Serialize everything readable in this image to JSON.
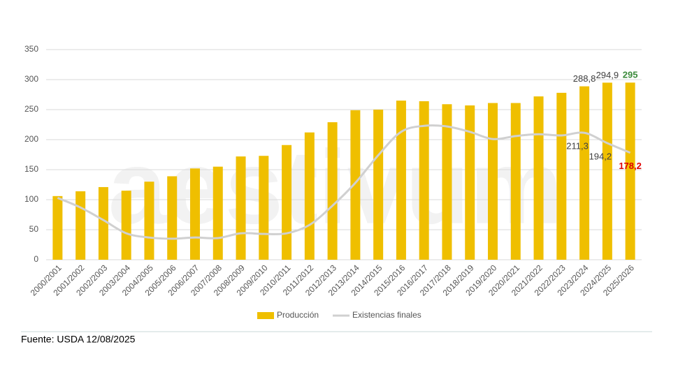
{
  "chart_data": {
    "type": "bar-line",
    "categories": [
      "2000/2001",
      "2001/2002",
      "2002/2003",
      "2003/2004",
      "2004/2005",
      "2005/2006",
      "2006/2007",
      "2007/2008",
      "2008/2009",
      "2009/2010",
      "2010/2011",
      "2011/2012",
      "2012/2013",
      "2013/2014",
      "2014/2015",
      "2015/2016",
      "2016/2017",
      "2017/2018",
      "2018/2019",
      "2019/2020",
      "2020/2021",
      "2021/2022",
      "2022/2023",
      "2023/2024",
      "2024/2025",
      "2025/2026"
    ],
    "series": [
      {
        "name": "Producción",
        "type": "bar",
        "color": "#efbf00",
        "values": [
          106,
          114,
          121,
          115,
          130,
          139,
          152,
          155,
          172,
          173,
          191,
          212,
          229,
          249,
          250,
          265,
          264,
          259,
          257,
          261,
          261,
          272,
          278,
          288.8,
          294.9,
          295
        ],
        "value_labels": [
          null,
          null,
          null,
          null,
          null,
          null,
          null,
          null,
          null,
          null,
          null,
          null,
          null,
          null,
          null,
          null,
          null,
          null,
          null,
          null,
          null,
          null,
          null,
          "288,8",
          "294,9",
          "295"
        ],
        "value_label_colors": [
          null,
          null,
          null,
          null,
          null,
          null,
          null,
          null,
          null,
          null,
          null,
          null,
          null,
          null,
          null,
          null,
          null,
          null,
          null,
          null,
          null,
          null,
          null,
          "#404040",
          "#404040",
          "#3a8a3a"
        ]
      },
      {
        "name": "Existencias finales",
        "type": "line",
        "color": "#d0d0d0",
        "values": [
          103,
          87,
          66,
          44,
          37,
          35,
          37,
          36,
          44,
          43,
          44,
          58,
          90,
          128,
          174,
          213,
          223,
          222,
          213,
          201,
          206,
          209,
          207,
          211.3,
          194.2,
          178.2
        ],
        "value_labels": [
          null,
          null,
          null,
          null,
          null,
          null,
          null,
          null,
          null,
          null,
          null,
          null,
          null,
          null,
          null,
          null,
          null,
          null,
          null,
          null,
          null,
          null,
          null,
          "211,3",
          "194,2",
          "178,2"
        ],
        "value_label_colors": [
          null,
          null,
          null,
          null,
          null,
          null,
          null,
          null,
          null,
          null,
          null,
          null,
          null,
          null,
          null,
          null,
          null,
          null,
          null,
          null,
          null,
          null,
          null,
          "#404040",
          "#404040",
          "#e00000"
        ]
      }
    ],
    "ylim": [
      0,
      350
    ],
    "yticks": [
      0,
      50,
      100,
      150,
      200,
      250,
      300,
      350
    ],
    "grid": true,
    "legend": "bottom",
    "watermark": "aestivum",
    "source": "Fuente: USDA 12/08/2025"
  }
}
